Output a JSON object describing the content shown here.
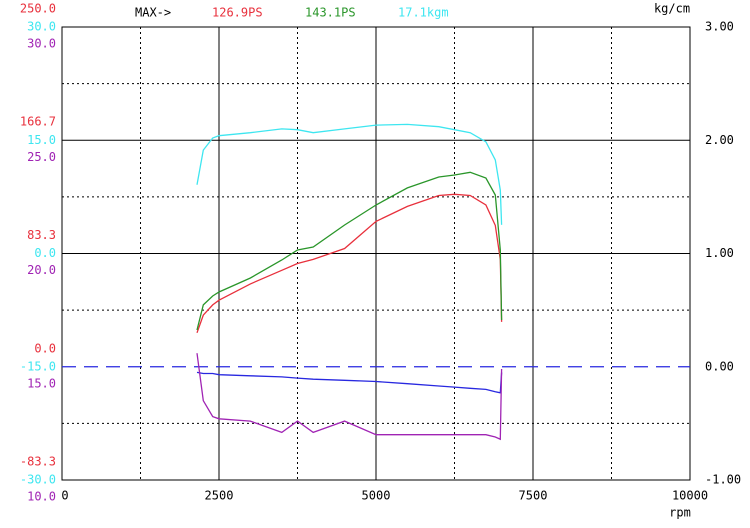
{
  "chart_data": {
    "type": "line",
    "annotations": [
      "MAX->",
      "126.9PS",
      "143.1PS",
      "17.1kgm"
    ],
    "xlabel": "rpm",
    "y2label": "kg/cm",
    "x": [
      2150,
      2250,
      2400,
      2500,
      3000,
      3500,
      3750,
      4000,
      4500,
      5000,
      5500,
      6000,
      6250,
      6500,
      6750,
      6900,
      6980,
      7000
    ],
    "xlim": [
      0,
      10000
    ],
    "xticks": [
      0,
      2500,
      5000,
      7500,
      10000
    ],
    "ylim": [
      -83.3,
      250
    ],
    "yticks": [
      {
        "value": 250,
        "label": "250.0"
      },
      {
        "value": 166.7,
        "label": "166.7"
      },
      {
        "value": 83.3,
        "label": "83.3"
      },
      {
        "value": 0,
        "label": "0.0"
      },
      {
        "value": -83.3,
        "label": "-83.3"
      }
    ],
    "y3lim": [
      -30,
      30
    ],
    "y3ticks": [
      {
        "value": 30,
        "label": "30.0"
      },
      {
        "value": 15,
        "label": "15.0"
      },
      {
        "value": 0,
        "label": "0.0"
      },
      {
        "value": -15,
        "label": "-15.0"
      },
      {
        "value": -30,
        "label": "-30.0"
      }
    ],
    "y4lim": [
      10,
      30
    ],
    "y4ticks": [
      {
        "value": 30,
        "label": "30.0"
      },
      {
        "value": 25,
        "label": "25.0"
      },
      {
        "value": 20,
        "label": "20.0"
      },
      {
        "value": 15,
        "label": "15.0"
      },
      {
        "value": 10,
        "label": "10.0"
      }
    ],
    "y2lim": [
      -1,
      3
    ],
    "y2ticks": [
      {
        "value": 3,
        "label": "3.00"
      },
      {
        "value": 2,
        "label": "2.00"
      },
      {
        "value": 1,
        "label": "1.00"
      },
      {
        "value": 0,
        "label": "0.00"
      },
      {
        "value": -1,
        "label": "-1.00"
      }
    ],
    "grid": true,
    "series": [
      {
        "color": "#e8303c",
        "axis": "y",
        "values": [
          25,
          38,
          45.5,
          49,
          61,
          71,
          76,
          79,
          87,
          107,
          118,
          126,
          126.9,
          126,
          119,
          104,
          79,
          33
        ]
      },
      {
        "color": "#2a962a",
        "axis": "y",
        "values": [
          27.1,
          45.5,
          52.1,
          55,
          65.3,
          78.6,
          85.9,
          88.1,
          104.3,
          119,
          131.6,
          139.6,
          141.1,
          143.1,
          138.9,
          126.4,
          85.9,
          34.4
        ]
      },
      {
        "color": "#3ee6f0",
        "axis": "y3",
        "values": [
          9.1,
          13.7,
          15.3,
          15.6,
          16,
          16.5,
          16.4,
          16,
          16.5,
          17,
          17.1,
          16.8,
          16.4,
          16,
          14.8,
          12.4,
          8.4,
          3.8
        ]
      },
      {
        "color": "#2828e0",
        "axis": "y2",
        "values": [
          -0.05,
          -0.06,
          -0.06,
          -0.07,
          -0.08,
          -0.09,
          -0.1,
          -0.11,
          -0.12,
          -0.13,
          -0.15,
          -0.17,
          -0.18,
          -0.19,
          -0.2,
          -0.22,
          -0.23,
          -0.05
        ]
      },
      {
        "color": "#a024b4",
        "axis": "y4",
        "values": [
          15.6,
          13.5,
          12.8,
          12.7,
          12.6,
          12.1,
          12.6,
          12.1,
          12.6,
          12,
          12,
          12,
          12,
          12,
          12,
          11.9,
          11.8,
          14.9
        ]
      }
    ]
  }
}
